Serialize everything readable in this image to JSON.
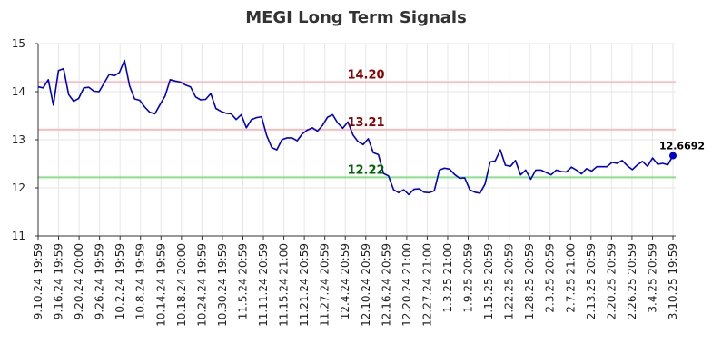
{
  "chart_data": {
    "type": "line",
    "title": "MEGI Long Term Signals",
    "ylim": [
      11,
      15
    ],
    "y_ticks": [
      "11",
      "12",
      "13",
      "14",
      "15"
    ],
    "x_tick_labels": [
      "9.10.24 19:59",
      "9.16.24 19:59",
      "9.20.24 20:00",
      "9.26.24 19:59",
      "10.2.24 19:59",
      "10.8.24 19:59",
      "10.14.24 19:59",
      "10.18.24 20:00",
      "10.24.24 19:59",
      "10.30.24 19:59",
      "11.5.24 20:59",
      "11.11.24 20:59",
      "11.15.24 21:00",
      "11.21.24 20:59",
      "11.27.24 20:59",
      "12.4.24 20:59",
      "12.10.24 20:59",
      "12.16.24 20:59",
      "12.20.24 21:00",
      "12.27.24 21:00",
      "1.3.25 21:00",
      "1.9.25 20:59",
      "1.15.25 20:59",
      "1.22.25 20:59",
      "1.28.25 20:59",
      "2.3.25 20:59",
      "2.7.25 21:00",
      "2.13.25 20:59",
      "2.20.25 20:59",
      "2.26.25 20:59",
      "3.4.25 20:59",
      "3.10.25 19:59"
    ],
    "grid": true,
    "series": [
      {
        "color": "#0000cc",
        "values": [
          14.1,
          14.08,
          14.25,
          13.72,
          14.44,
          14.48,
          13.94,
          13.8,
          13.86,
          14.08,
          14.09,
          14.01,
          14.0,
          14.18,
          14.36,
          14.33,
          14.4,
          14.65,
          14.12,
          13.85,
          13.82,
          13.68,
          13.57,
          13.54,
          13.73,
          13.91,
          14.25,
          14.22,
          14.2,
          14.14,
          14.1,
          13.89,
          13.83,
          13.84,
          13.96,
          13.65,
          13.59,
          13.55,
          13.54,
          13.42,
          13.52,
          13.25,
          13.42,
          13.46,
          13.48,
          13.09,
          12.84,
          12.79,
          13.0,
          13.04,
          13.04,
          12.98,
          13.12,
          13.2,
          13.25,
          13.18,
          13.3,
          13.47,
          13.52,
          13.35,
          13.24,
          13.37,
          13.1,
          12.96,
          12.9,
          13.02,
          12.73,
          12.69,
          12.3,
          12.25,
          11.96,
          11.9,
          11.96,
          11.86,
          11.97,
          11.98,
          11.91,
          11.9,
          11.94,
          12.37,
          12.41,
          12.39,
          12.28,
          12.2,
          12.21,
          11.96,
          11.91,
          11.89,
          12.08,
          12.54,
          12.56,
          12.79,
          12.47,
          12.45,
          12.57,
          12.27,
          12.37,
          12.18,
          12.37,
          12.37,
          12.32,
          12.27,
          12.37,
          12.34,
          12.33,
          12.43,
          12.37,
          12.29,
          12.4,
          12.35,
          12.44,
          12.44,
          12.44,
          12.53,
          12.51,
          12.57,
          12.46,
          12.38,
          12.48,
          12.55,
          12.45,
          12.62,
          12.49,
          12.51,
          12.48,
          12.6692
        ]
      }
    ],
    "reference_lines": [
      {
        "value": 14.2,
        "label": "14.20",
        "line_color": "#ffbbbb",
        "text_color": "#8b0000"
      },
      {
        "value": 13.21,
        "label": "13.21",
        "line_color": "#ffbbbb",
        "text_color": "#8b0000"
      },
      {
        "value": 12.22,
        "label": "12.22",
        "line_color": "#88e088",
        "text_color": "#006400"
      }
    ],
    "last_value_label": "12.6692"
  }
}
